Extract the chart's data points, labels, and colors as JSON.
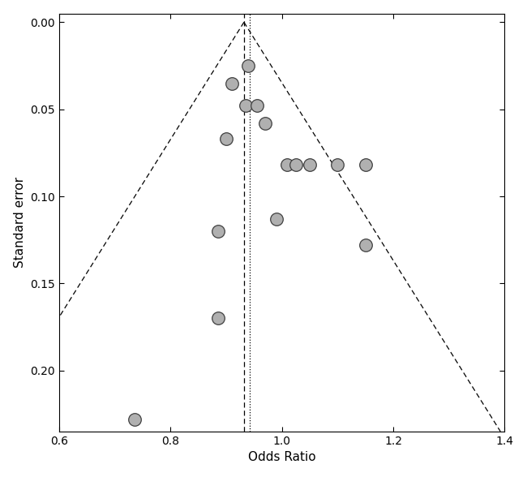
{
  "title": "",
  "xlabel": "Odds Ratio",
  "ylabel": "Standard error",
  "xlim": [
    0.6,
    1.4
  ],
  "ylim": [
    0.235,
    -0.005
  ],
  "xticks": [
    0.6,
    0.8,
    1.0,
    1.2,
    1.4
  ],
  "yticks": [
    0.0,
    0.05,
    0.1,
    0.15,
    0.2
  ],
  "pooled_or": 0.932,
  "pooled_or2": 0.943,
  "funnel_slope": 1.96,
  "points": [
    {
      "or": 0.735,
      "se": 0.228
    },
    {
      "or": 0.885,
      "se": 0.17
    },
    {
      "or": 0.885,
      "se": 0.12
    },
    {
      "or": 0.9,
      "se": 0.067
    },
    {
      "or": 0.91,
      "se": 0.035
    },
    {
      "or": 0.935,
      "se": 0.048
    },
    {
      "or": 0.94,
      "se": 0.025
    },
    {
      "or": 0.955,
      "se": 0.048
    },
    {
      "or": 0.97,
      "se": 0.058
    },
    {
      "or": 0.99,
      "se": 0.113
    },
    {
      "or": 1.01,
      "se": 0.082
    },
    {
      "or": 1.025,
      "se": 0.082
    },
    {
      "or": 1.05,
      "se": 0.082
    },
    {
      "or": 1.1,
      "se": 0.082
    },
    {
      "or": 1.15,
      "se": 0.128
    },
    {
      "or": 1.15,
      "se": 0.082
    }
  ],
  "marker_facecolor": "#b0b0b0",
  "marker_edgecolor": "#404040",
  "marker_size": 6,
  "bg_color": "#ffffff"
}
